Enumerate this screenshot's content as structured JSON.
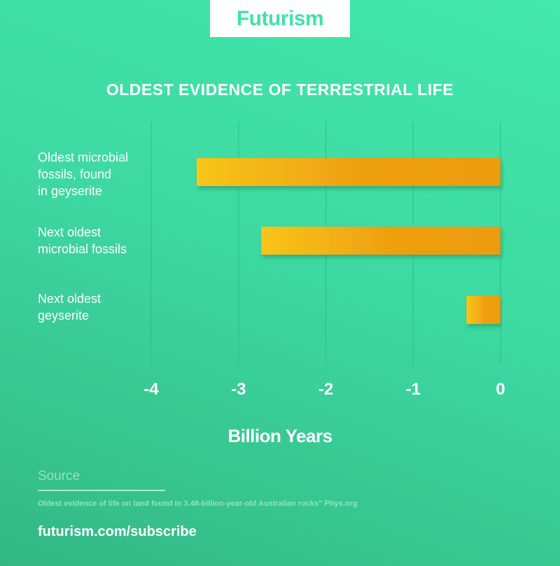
{
  "brand": {
    "logo": "Futurism",
    "accent": "#3ee3a6"
  },
  "chart_data": {
    "type": "bar",
    "orientation": "horizontal",
    "title": "OLDEST EVIDENCE OF TERRESTRIAL LIFE",
    "xlabel": "Billion Years",
    "ylabel": "",
    "categories": [
      [
        "Oldest microbial",
        "fossils, found",
        "in geyserite"
      ],
      [
        "Next oldest",
        "microbial fossils"
      ],
      [
        "Next oldest",
        "geyserite"
      ]
    ],
    "values": [
      -3.48,
      -2.74,
      -0.39
    ],
    "xlim": [
      -4,
      0
    ],
    "xticks": [
      "-4",
      "-3",
      "-2",
      "-1",
      "0"
    ],
    "grid": "vertical",
    "bar_colors": [
      "#f8c51a",
      "#ee9f10"
    ]
  },
  "source": {
    "heading": "Source",
    "text": "Oldest evidence of life on land found in 3.48-billion-year-old Australian rocks\" Phys.org"
  },
  "footer": {
    "link": "futurism.com/subscribe"
  }
}
